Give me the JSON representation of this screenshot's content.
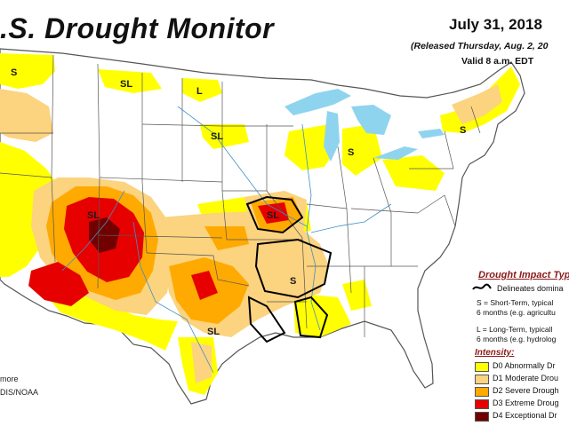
{
  "header": {
    "title": ".S. Drought Monitor",
    "date": "July 31, 2018",
    "released": "(Released Thursday, Aug. 2, 20",
    "valid": "Valid 8 a.m. EDT"
  },
  "legend": {
    "heading": "Drought Impact Typ",
    "delineates": "Delineates domina",
    "short_term_1": "S = Short-Term, typical",
    "short_term_2": "6 months (e.g. agricultu",
    "long_term_1": "L = Long-Term, typicall",
    "long_term_2": "6 months (e.g. hydrolog",
    "intensity": "Intensity:",
    "categories": [
      {
        "label": "D0 Abnormally Dr",
        "color": "#ffff00"
      },
      {
        "label": "D1 Moderate Drou",
        "color": "#fcd37f"
      },
      {
        "label": "D2 Severe Drough",
        "color": "#ffaa00"
      },
      {
        "label": "D3 Extreme Droug",
        "color": "#e60000"
      },
      {
        "label": "D4 Exceptional Dr",
        "color": "#730000"
      }
    ]
  },
  "credits": {
    "line1": "more",
    "line2": "DIS/NOAA"
  },
  "map_labels": [
    {
      "id": "s-northwest",
      "text": "S"
    },
    {
      "id": "sl-montana",
      "text": "SL"
    },
    {
      "id": "l-dakotas",
      "text": "L"
    },
    {
      "id": "sl-minnesota",
      "text": "SL"
    },
    {
      "id": "s-michigan",
      "text": "S"
    },
    {
      "id": "s-newengland",
      "text": "S"
    },
    {
      "id": "sl-southwest",
      "text": "SL"
    },
    {
      "id": "sl-missouri",
      "text": "SL"
    },
    {
      "id": "s-arkansas",
      "text": "S"
    },
    {
      "id": "sl-texas",
      "text": "SL"
    }
  ],
  "colors": {
    "water": "#8fd4ee",
    "border": "#555555",
    "delineation": "#000000"
  }
}
